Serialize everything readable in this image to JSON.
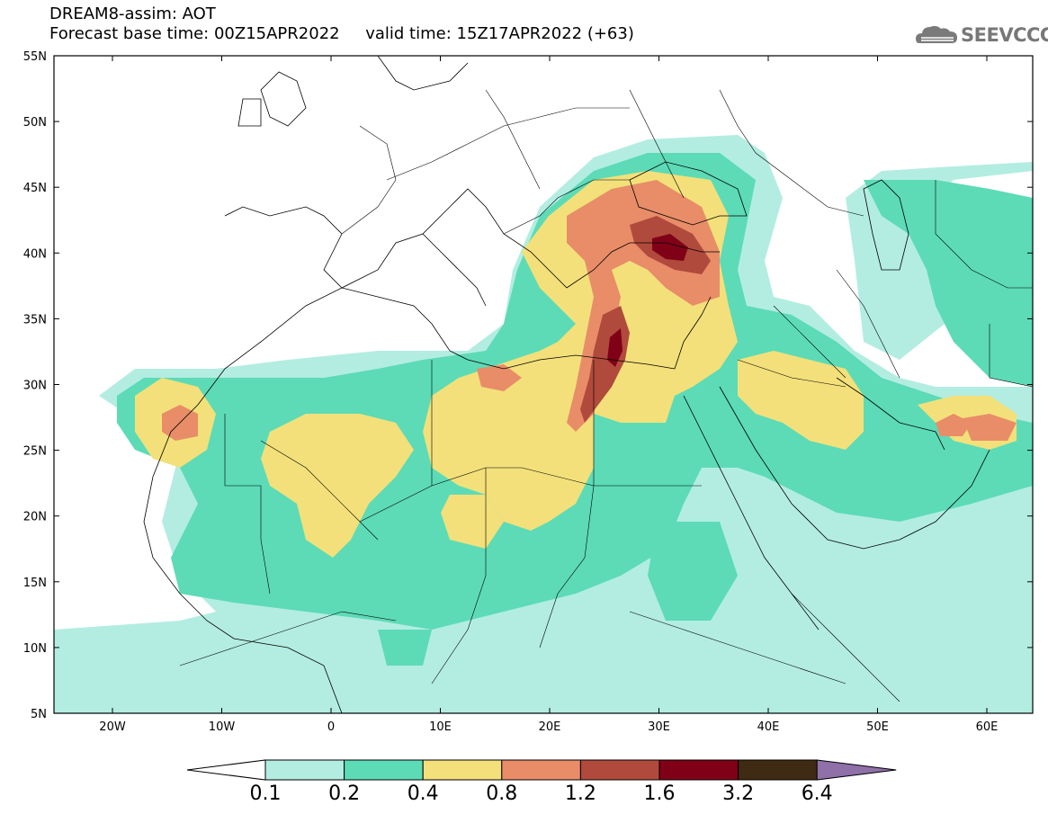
{
  "header": {
    "title_line1": "DREAM8-assim: AOT",
    "title_line2": "Forecast base time: 00Z15APR2022     valid time: 15Z17APR2022 (+63)"
  },
  "logo": {
    "text": "SEEVCCC",
    "icon": "cloud-icon"
  },
  "map": {
    "lon_ticks": [
      "20W",
      "10W",
      "0",
      "10E",
      "20E",
      "30E",
      "40E",
      "50E",
      "60E"
    ],
    "lat_ticks": [
      "55N",
      "50N",
      "45N",
      "40N",
      "35N",
      "30N",
      "25N",
      "20N",
      "15N",
      "10N",
      "5N"
    ]
  },
  "colorbar": {
    "labels": [
      "0.1",
      "0.2",
      "0.4",
      "0.8",
      "1.2",
      "1.6",
      "3.2",
      "6.4"
    ],
    "colors": [
      "#b3ede1",
      "#5cdbb6",
      "#f3e07a",
      "#e88d68",
      "#b04a3c",
      "#800018",
      "#3f2a14",
      "#9070a8"
    ]
  }
}
